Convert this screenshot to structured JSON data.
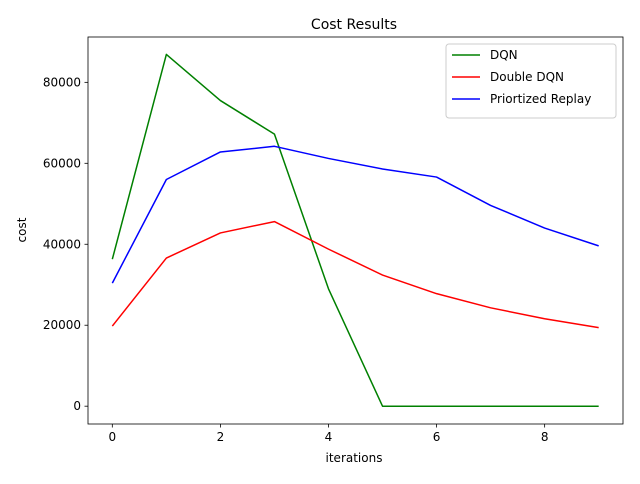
{
  "chart_data": {
    "type": "line",
    "title": "Cost Results",
    "xlabel": "iterations",
    "ylabel": "cost",
    "x": [
      0,
      1,
      2,
      3,
      4,
      5,
      6,
      7,
      8,
      9
    ],
    "xlim": [
      -0.45,
      9.45
    ],
    "ylim": [
      -4400,
      91200
    ],
    "xticks": [
      0,
      2,
      4,
      6,
      8
    ],
    "yticks": [
      0,
      20000,
      40000,
      60000,
      80000
    ],
    "grid": false,
    "legend_position": "top-right",
    "series": [
      {
        "name": "DQN",
        "color": "#008000",
        "values": [
          36300,
          86900,
          75500,
          67200,
          29000,
          0,
          0,
          0,
          0,
          0
        ]
      },
      {
        "name": "Double DQN",
        "color": "#ff0000",
        "values": [
          19800,
          36600,
          42800,
          45600,
          38800,
          32400,
          27800,
          24300,
          21600,
          19400
        ]
      },
      {
        "name": "Priortized Replay",
        "color": "#0000ff",
        "values": [
          30400,
          56000,
          62800,
          64200,
          61200,
          58600,
          56600,
          49600,
          44000,
          39600
        ]
      }
    ]
  }
}
